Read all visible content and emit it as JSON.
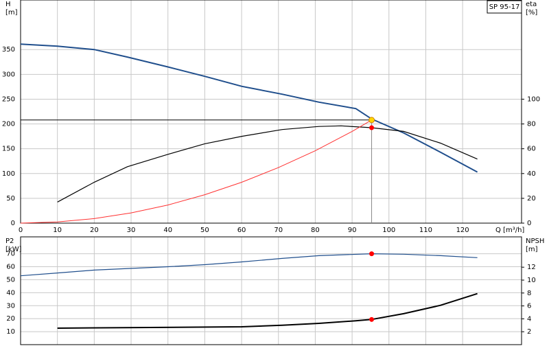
{
  "chart_data": [
    {
      "type": "line",
      "annotation": "SP 95-17",
      "xlabel": "Q [m³/h]",
      "ylabel": [
        "H",
        "[m]"
      ],
      "y2label": [
        "eta",
        "[%]"
      ],
      "xlim": [
        0,
        136
      ],
      "xticks": [
        0,
        10,
        20,
        30,
        40,
        50,
        60,
        70,
        80,
        90,
        100,
        110,
        120
      ],
      "ylim": [
        0,
        450
      ],
      "yticks": [
        0,
        50,
        100,
        150,
        200,
        250,
        300,
        350
      ],
      "y2lim": [
        0,
        180
      ],
      "y2ticks": [
        0,
        20,
        40,
        60,
        80,
        100
      ],
      "grid": true,
      "series": [
        {
          "color": "#1f4e8c",
          "width": 2,
          "x": [
            0,
            10,
            20,
            29,
            40,
            50,
            60,
            71,
            81,
            91,
            95.3,
            104,
            114,
            124
          ],
          "values": [
            361,
            357,
            350,
            335,
            315,
            296,
            276,
            260,
            244,
            231,
            210,
            182,
            143,
            103
          ]
        },
        {
          "color": "#000000",
          "width": 1.2,
          "axis": "y2",
          "x": [
            10,
            20,
            29,
            40,
            50,
            60,
            71,
            81,
            87,
            95.3,
            104,
            114,
            124
          ],
          "values": [
            17,
            33,
            45.5,
            55.5,
            64,
            70,
            75.5,
            78,
            78.5,
            77,
            74,
            64.5,
            51.7
          ]
        },
        {
          "color": "#ff3030",
          "width": 1,
          "x": [
            0,
            10,
            20,
            30,
            40,
            50,
            60,
            70,
            80,
            90,
            95.3
          ],
          "values": [
            0,
            2.3,
            9.2,
            20.6,
            36.6,
            57.3,
            82.4,
            112,
            146,
            185,
            208
          ]
        }
      ],
      "duty_point": {
        "x": 95.3,
        "y": 208,
        "color": "#ffd700"
      },
      "markers": [
        {
          "x": 95.3,
          "y": 77,
          "axis": "y2",
          "color": "#ff0000"
        }
      ]
    },
    {
      "type": "line",
      "ylabel": [
        "P2",
        "[kW]"
      ],
      "y2label": [
        "NPSH",
        "[m]"
      ],
      "xlim": [
        0,
        136
      ],
      "xticks": [
        0,
        10,
        20,
        30,
        40,
        50,
        60,
        70,
        80,
        90,
        100,
        110,
        120
      ],
      "ylim": [
        0,
        83
      ],
      "yticks": [
        10,
        20,
        30,
        40,
        50,
        60,
        70
      ],
      "y2lim": [
        0,
        16.7
      ],
      "y2ticks": [
        2,
        4,
        6,
        8,
        10,
        12
      ],
      "grid": true,
      "series": [
        {
          "color": "#1f4e8c",
          "width": 1.2,
          "x": [
            0,
            10,
            20,
            40,
            50,
            60,
            71,
            81,
            95.3,
            104,
            114,
            124
          ],
          "values": [
            53,
            55.2,
            57.4,
            60,
            61.6,
            63.7,
            66.4,
            68.5,
            70,
            69.6,
            68.5,
            67
          ]
        },
        {
          "color": "#000000",
          "width": 2,
          "axis": "y2",
          "x": [
            10,
            60,
            71,
            81,
            91,
            95.3,
            104,
            114,
            124
          ],
          "values": [
            2.55,
            2.77,
            3.0,
            3.3,
            3.7,
            3.9,
            4.8,
            6.1,
            7.9
          ]
        }
      ],
      "markers": [
        {
          "x": 95.3,
          "y": 70,
          "color": "#ff0000"
        },
        {
          "x": 95.3,
          "y": 3.9,
          "axis": "y2",
          "color": "#ff0000"
        }
      ]
    }
  ]
}
